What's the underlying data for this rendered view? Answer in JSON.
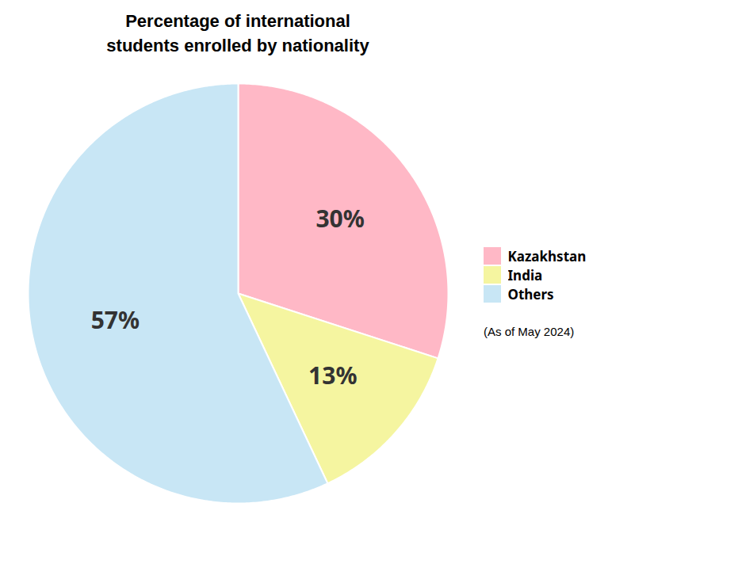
{
  "chart_data": {
    "type": "pie",
    "title": "Percentage of international\nstudents enrolled by nationality",
    "categories": [
      "Kazakhstan",
      "India",
      "Others"
    ],
    "values": [
      30,
      13,
      57
    ],
    "value_labels": [
      "30%",
      "13%",
      "57%"
    ],
    "colors": [
      "#FFB8C6",
      "#F5F5A0",
      "#C8E6F5"
    ],
    "data_labels": true,
    "legend": "right",
    "annotations": [
      "(As of May 2024)"
    ]
  }
}
